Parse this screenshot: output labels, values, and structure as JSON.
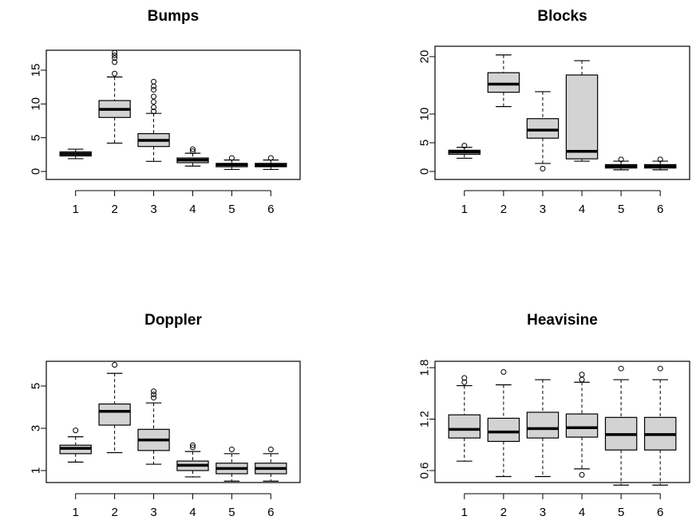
{
  "chart_data": [
    {
      "type": "boxplot",
      "title": "Bumps",
      "categories": [
        "1",
        "2",
        "3",
        "4",
        "5",
        "6"
      ],
      "ylim": [
        0,
        18
      ],
      "yticks": [
        0,
        5,
        10,
        15
      ],
      "boxes": [
        {
          "lower_whisker": 1.9,
          "q1": 2.3,
          "median": 2.6,
          "q3": 2.9,
          "upper_whisker": 3.3,
          "outliers": []
        },
        {
          "lower_whisker": 4.2,
          "q1": 8.0,
          "median": 9.2,
          "q3": 10.5,
          "upper_whisker": 14.0,
          "outliers": [
            14.5,
            16.2,
            16.8,
            17.2,
            17.6
          ]
        },
        {
          "lower_whisker": 1.5,
          "q1": 3.7,
          "median": 4.6,
          "q3": 5.6,
          "upper_whisker": 8.6,
          "outliers": [
            8.9,
            9.5,
            10.3,
            11.1,
            12.1,
            12.6,
            13.3
          ]
        },
        {
          "lower_whisker": 0.8,
          "q1": 1.3,
          "median": 1.7,
          "q3": 2.0,
          "upper_whisker": 2.7,
          "outliers": [
            3.0,
            3.3
          ]
        },
        {
          "lower_whisker": 0.3,
          "q1": 0.7,
          "median": 1.0,
          "q3": 1.2,
          "upper_whisker": 1.7,
          "outliers": [
            2.0
          ]
        },
        {
          "lower_whisker": 0.3,
          "q1": 0.7,
          "median": 0.95,
          "q3": 1.2,
          "upper_whisker": 1.7,
          "outliers": [
            2.0
          ]
        }
      ]
    },
    {
      "type": "boxplot",
      "title": "Blocks",
      "categories": [
        "1",
        "2",
        "3",
        "4",
        "5",
        "6"
      ],
      "ylim": [
        0,
        20
      ],
      "yticks": [
        0,
        5,
        10,
        20
      ],
      "boxes": [
        {
          "lower_whisker": 2.3,
          "q1": 3.0,
          "median": 3.4,
          "q3": 3.7,
          "upper_whisker": 4.2,
          "outliers": [
            4.5
          ]
        },
        {
          "lower_whisker": 11.3,
          "q1": 13.8,
          "median": 15.2,
          "q3": 17.2,
          "upper_whisker": 20.3,
          "outliers": []
        },
        {
          "lower_whisker": 1.4,
          "q1": 5.8,
          "median": 7.2,
          "q3": 9.2,
          "upper_whisker": 13.9,
          "outliers": [
            0.5
          ]
        },
        {
          "lower_whisker": 1.8,
          "q1": 2.2,
          "median": 3.5,
          "q3": 16.8,
          "upper_whisker": 19.3,
          "outliers": []
        },
        {
          "lower_whisker": 0.3,
          "q1": 0.6,
          "median": 0.9,
          "q3": 1.2,
          "upper_whisker": 1.8,
          "outliers": [
            2.1
          ]
        },
        {
          "lower_whisker": 0.3,
          "q1": 0.6,
          "median": 0.9,
          "q3": 1.2,
          "upper_whisker": 1.8,
          "outliers": [
            2.1
          ]
        }
      ]
    },
    {
      "type": "boxplot",
      "title": "Doppler",
      "categories": [
        "1",
        "2",
        "3",
        "4",
        "5",
        "6"
      ],
      "ylim": [
        0.4,
        6.0
      ],
      "yticks": [
        1,
        3,
        5
      ],
      "boxes": [
        {
          "lower_whisker": 1.4,
          "q1": 1.8,
          "median": 2.05,
          "q3": 2.2,
          "upper_whisker": 2.6,
          "outliers": [
            2.9
          ]
        },
        {
          "lower_whisker": 1.85,
          "q1": 3.15,
          "median": 3.8,
          "q3": 4.15,
          "upper_whisker": 5.6,
          "outliers": [
            6.0
          ]
        },
        {
          "lower_whisker": 1.3,
          "q1": 1.95,
          "median": 2.45,
          "q3": 2.95,
          "upper_whisker": 4.2,
          "outliers": [
            4.45,
            4.6,
            4.75
          ]
        },
        {
          "lower_whisker": 0.7,
          "q1": 1.0,
          "median": 1.25,
          "q3": 1.45,
          "upper_whisker": 1.9,
          "outliers": [
            2.1,
            2.2
          ]
        },
        {
          "lower_whisker": 0.5,
          "q1": 0.85,
          "median": 1.1,
          "q3": 1.35,
          "upper_whisker": 1.8,
          "outliers": [
            2.0
          ]
        },
        {
          "lower_whisker": 0.5,
          "q1": 0.85,
          "median": 1.1,
          "q3": 1.35,
          "upper_whisker": 1.8,
          "outliers": [
            2.0
          ]
        }
      ]
    },
    {
      "type": "boxplot",
      "title": "Heavisine",
      "categories": [
        "1",
        "2",
        "3",
        "4",
        "5",
        "6"
      ],
      "ylim": [
        0.4,
        1.8
      ],
      "yticks": [
        0.6,
        1.2,
        1.8
      ],
      "boxes": [
        {
          "lower_whisker": 0.71,
          "q1": 0.98,
          "median": 1.08,
          "q3": 1.25,
          "upper_whisker": 1.59,
          "outliers": [
            1.63,
            1.68
          ]
        },
        {
          "lower_whisker": 0.53,
          "q1": 0.94,
          "median": 1.05,
          "q3": 1.21,
          "upper_whisker": 1.6,
          "outliers": [
            1.75
          ]
        },
        {
          "lower_whisker": 0.53,
          "q1": 0.98,
          "median": 1.09,
          "q3": 1.28,
          "upper_whisker": 1.66,
          "outliers": []
        },
        {
          "lower_whisker": 0.62,
          "q1": 0.99,
          "median": 1.1,
          "q3": 1.26,
          "upper_whisker": 1.63,
          "outliers": [
            0.55,
            1.66,
            1.72
          ]
        },
        {
          "lower_whisker": 0.43,
          "q1": 0.84,
          "median": 1.02,
          "q3": 1.22,
          "upper_whisker": 1.66,
          "outliers": [
            1.79
          ]
        },
        {
          "lower_whisker": 0.43,
          "q1": 0.84,
          "median": 1.02,
          "q3": 1.22,
          "upper_whisker": 1.66,
          "outliers": [
            1.79
          ]
        }
      ]
    }
  ],
  "colors": {
    "box_fill": "#d3d3d3",
    "line": "#000000",
    "background": "#ffffff"
  }
}
